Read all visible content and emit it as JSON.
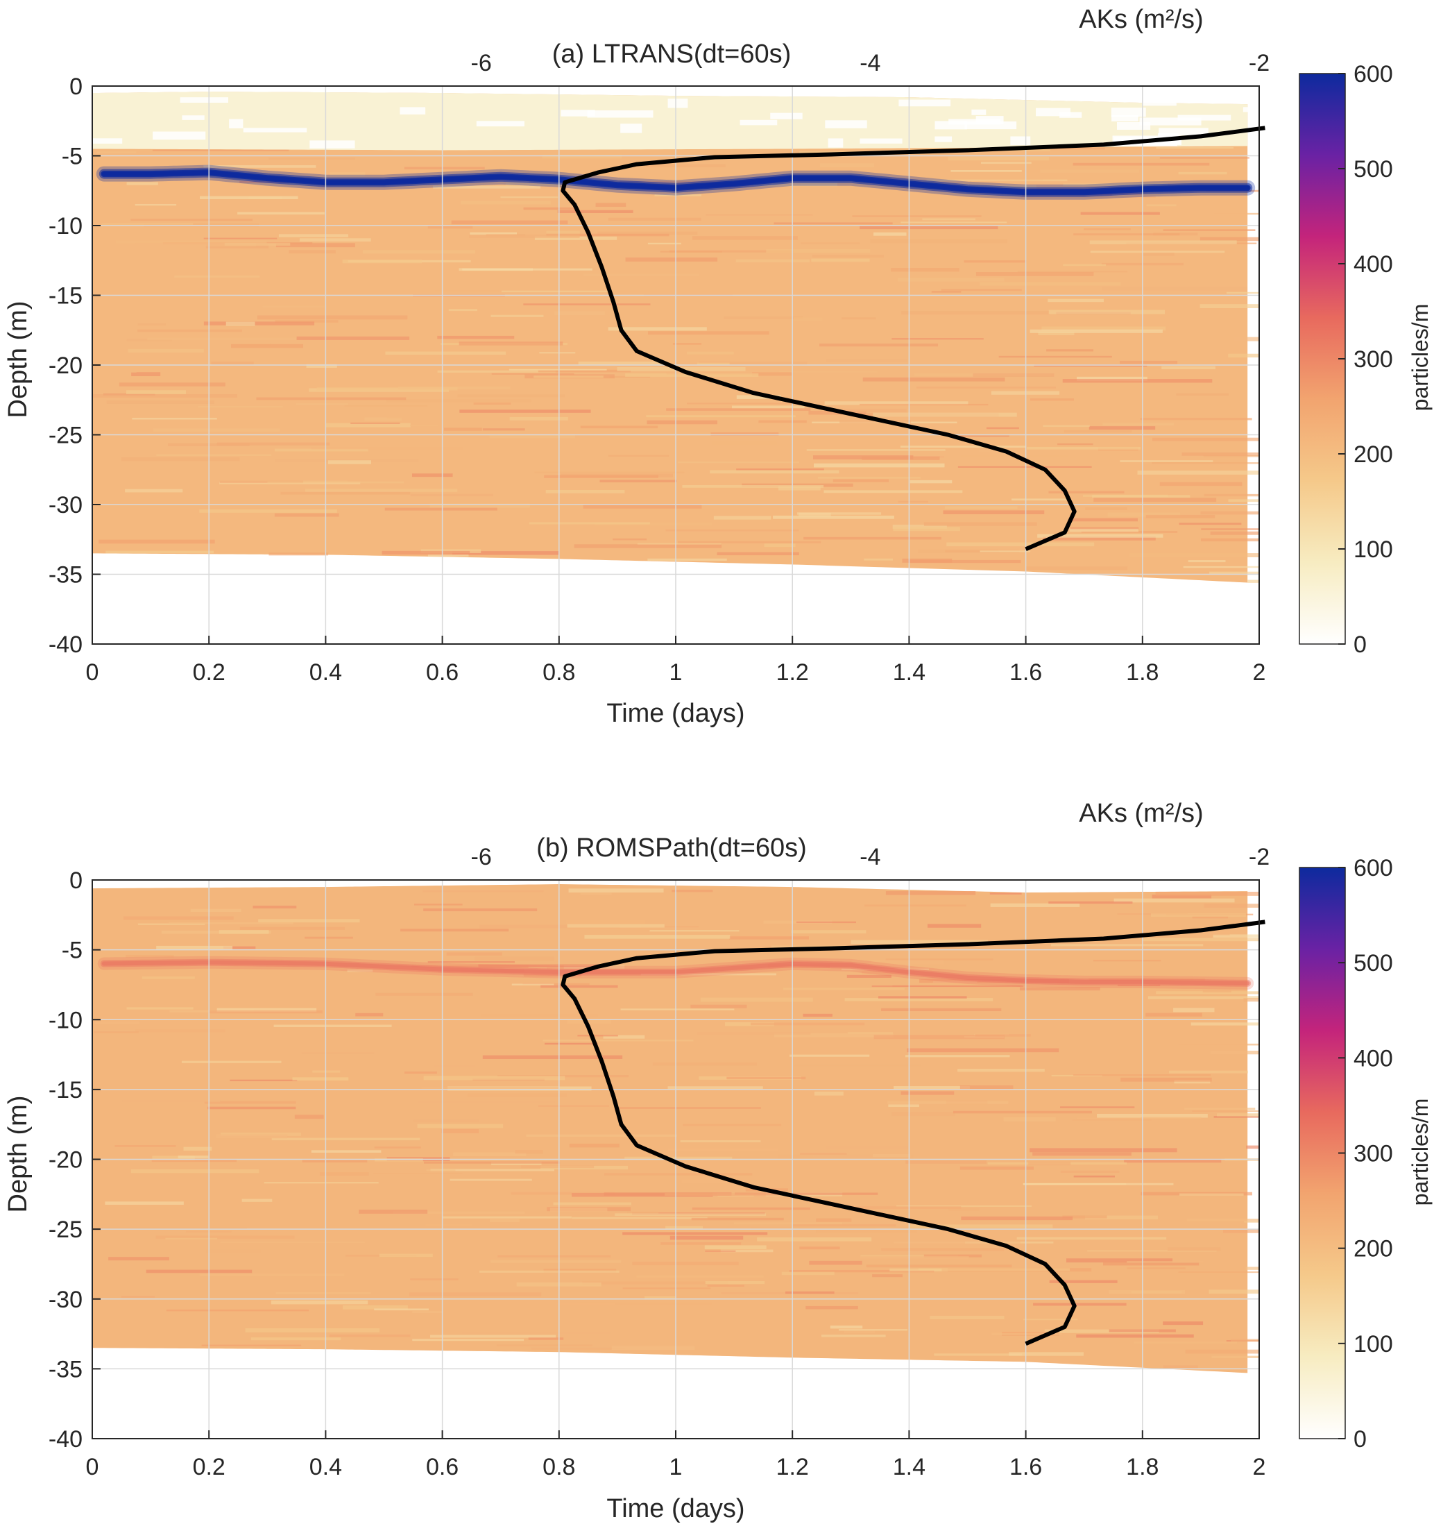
{
  "colors": {
    "colormap": [
      "#ffffff",
      "#f7ecc1",
      "#f5c98a",
      "#f2a46f",
      "#e86a5e",
      "#c4247b",
      "#6a22a4",
      "#0d2a9e"
    ],
    "profile_line": "#000000",
    "grid": "#d9d9d9",
    "axis": "#262626"
  },
  "chart_data": [
    {
      "type": "heatmap",
      "title": "(a) LTRANS(dt=60s)",
      "xlabel": "Time (days)",
      "ylabel": "Depth (m)",
      "xlim": [
        0,
        2
      ],
      "ylim": [
        -40,
        0
      ],
      "xticks": [
        "0",
        "0.2",
        "0.4",
        "0.6",
        "0.8",
        "1",
        "1.2",
        "1.4",
        "1.6",
        "1.8",
        "2"
      ],
      "yticks": [
        "0",
        "-5",
        "-10",
        "-15",
        "-20",
        "-25",
        "-30",
        "-35",
        "-40"
      ],
      "grid": true,
      "colorbar": {
        "label": "particles/m",
        "range": [
          0,
          600
        ],
        "ticks": [
          "0",
          "100",
          "200",
          "300",
          "400",
          "500",
          "600"
        ]
      },
      "top_axis": {
        "label": "AKs (m²/s)",
        "range": [
          -8,
          -2
        ],
        "ticks": [
          "-6",
          "-4",
          "-2"
        ]
      },
      "layer_top": [
        [
          0,
          -0.5
        ],
        [
          0.2,
          -0.4
        ],
        [
          0.6,
          -0.5
        ],
        [
          1.0,
          -0.7
        ],
        [
          1.4,
          -0.8
        ],
        [
          1.6,
          -1.0
        ],
        [
          1.8,
          -1.2
        ],
        [
          1.98,
          -1.3
        ]
      ],
      "layer_bottom": [
        [
          0,
          -33.5
        ],
        [
          0.4,
          -33.6
        ],
        [
          0.8,
          -33.9
        ],
        [
          1.2,
          -34.3
        ],
        [
          1.6,
          -34.8
        ],
        [
          1.98,
          -35.6
        ]
      ],
      "surface_thin_layer_bottom": [
        [
          0,
          -4.5
        ],
        [
          0.6,
          -4.6
        ],
        [
          1.2,
          -4.5
        ],
        [
          1.6,
          -4.4
        ],
        [
          1.98,
          -4.3
        ]
      ],
      "background_density": 210,
      "surface_layer_density": 60,
      "peak_density": 600,
      "peak_depth": [
        [
          0,
          -6.3
        ],
        [
          0.1,
          -6.3
        ],
        [
          0.2,
          -6.2
        ],
        [
          0.3,
          -6.6
        ],
        [
          0.4,
          -6.9
        ],
        [
          0.5,
          -6.9
        ],
        [
          0.6,
          -6.7
        ],
        [
          0.7,
          -6.5
        ],
        [
          0.8,
          -6.7
        ],
        [
          0.9,
          -7.1
        ],
        [
          1.0,
          -7.3
        ],
        [
          1.1,
          -7.0
        ],
        [
          1.2,
          -6.6
        ],
        [
          1.3,
          -6.6
        ],
        [
          1.4,
          -7.0
        ],
        [
          1.5,
          -7.4
        ],
        [
          1.6,
          -7.6
        ],
        [
          1.7,
          -7.6
        ],
        [
          1.8,
          -7.4
        ],
        [
          1.9,
          -7.3
        ],
        [
          1.98,
          -7.3
        ]
      ],
      "aks_profile": [
        [
          -1.97,
          -3.0
        ],
        [
          -2.3,
          -3.6
        ],
        [
          -2.8,
          -4.2
        ],
        [
          -3.5,
          -4.6
        ],
        [
          -4.2,
          -4.9
        ],
        [
          -4.8,
          -5.1
        ],
        [
          -5.2,
          -5.6
        ],
        [
          -5.4,
          -6.2
        ],
        [
          -5.57,
          -6.9
        ],
        [
          -5.58,
          -7.5
        ],
        [
          -5.52,
          -8.5
        ],
        [
          -5.45,
          -10.5
        ],
        [
          -5.38,
          -13.0
        ],
        [
          -5.32,
          -15.5
        ],
        [
          -5.28,
          -17.5
        ],
        [
          -5.2,
          -19.0
        ],
        [
          -4.95,
          -20.5
        ],
        [
          -4.6,
          -22.0
        ],
        [
          -4.1,
          -23.5
        ],
        [
          -3.6,
          -25.0
        ],
        [
          -3.3,
          -26.2
        ],
        [
          -3.1,
          -27.5
        ],
        [
          -3.0,
          -29.0
        ],
        [
          -2.95,
          -30.5
        ],
        [
          -3.0,
          -32.0
        ],
        [
          -3.2,
          -33.2
        ]
      ]
    },
    {
      "type": "heatmap",
      "title": "(b) ROMSPath(dt=60s)",
      "xlabel": "Time (days)",
      "ylabel": "Depth (m)",
      "xlim": [
        0,
        2
      ],
      "ylim": [
        -40,
        0
      ],
      "xticks": [
        "0",
        "0.2",
        "0.4",
        "0.6",
        "0.8",
        "1",
        "1.2",
        "1.4",
        "1.6",
        "1.8",
        "2"
      ],
      "yticks": [
        "0",
        "-5",
        "-10",
        "-15",
        "-20",
        "-25",
        "-30",
        "-35",
        "-40"
      ],
      "grid": true,
      "colorbar": {
        "label": "particles/m",
        "range": [
          0,
          600
        ],
        "ticks": [
          "0",
          "100",
          "200",
          "300",
          "400",
          "500",
          "600"
        ]
      },
      "top_axis": {
        "label": "AKs (m²/s)",
        "range": [
          -8,
          -2
        ],
        "ticks": [
          "-6",
          "-4",
          "-2"
        ]
      },
      "layer_top": [
        [
          0,
          -0.6
        ],
        [
          0.4,
          -0.5
        ],
        [
          0.8,
          -0.3
        ],
        [
          1.2,
          -0.5
        ],
        [
          1.6,
          -0.9
        ],
        [
          1.98,
          -0.8
        ]
      ],
      "layer_bottom": [
        [
          0,
          -33.5
        ],
        [
          0.4,
          -33.6
        ],
        [
          0.8,
          -33.8
        ],
        [
          1.2,
          -34.2
        ],
        [
          1.6,
          -34.5
        ],
        [
          1.98,
          -35.3
        ]
      ],
      "surface_thin_layer_bottom": [],
      "background_density": 215,
      "surface_layer_density": 215,
      "peak_density": 330,
      "peak_depth": [
        [
          0,
          -6.0
        ],
        [
          0.2,
          -5.9
        ],
        [
          0.4,
          -6.0
        ],
        [
          0.6,
          -6.4
        ],
        [
          0.8,
          -6.6
        ],
        [
          1.0,
          -6.6
        ],
        [
          1.1,
          -6.3
        ],
        [
          1.2,
          -6.0
        ],
        [
          1.3,
          -6.1
        ],
        [
          1.4,
          -6.6
        ],
        [
          1.5,
          -7.0
        ],
        [
          1.6,
          -7.2
        ],
        [
          1.7,
          -7.3
        ],
        [
          1.8,
          -7.3
        ],
        [
          1.98,
          -7.4
        ]
      ],
      "aks_profile": [
        [
          -1.97,
          -3.0
        ],
        [
          -2.3,
          -3.6
        ],
        [
          -2.8,
          -4.2
        ],
        [
          -3.5,
          -4.6
        ],
        [
          -4.2,
          -4.9
        ],
        [
          -4.8,
          -5.1
        ],
        [
          -5.2,
          -5.6
        ],
        [
          -5.4,
          -6.2
        ],
        [
          -5.57,
          -6.9
        ],
        [
          -5.58,
          -7.5
        ],
        [
          -5.52,
          -8.5
        ],
        [
          -5.45,
          -10.5
        ],
        [
          -5.38,
          -13.0
        ],
        [
          -5.32,
          -15.5
        ],
        [
          -5.28,
          -17.5
        ],
        [
          -5.2,
          -19.0
        ],
        [
          -4.95,
          -20.5
        ],
        [
          -4.6,
          -22.0
        ],
        [
          -4.1,
          -23.5
        ],
        [
          -3.6,
          -25.0
        ],
        [
          -3.3,
          -26.2
        ],
        [
          -3.1,
          -27.5
        ],
        [
          -3.0,
          -29.0
        ],
        [
          -2.95,
          -30.5
        ],
        [
          -3.0,
          -32.0
        ],
        [
          -3.2,
          -33.2
        ]
      ]
    }
  ]
}
